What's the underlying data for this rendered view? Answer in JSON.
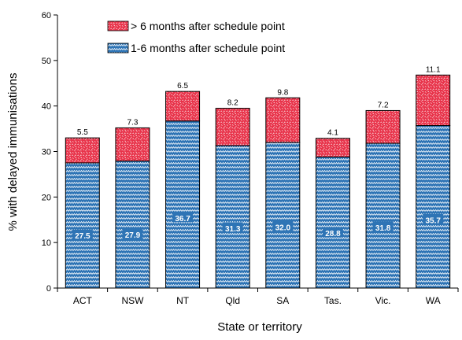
{
  "chart_data": {
    "type": "bar",
    "stacked": true,
    "categories": [
      "ACT",
      "NSW",
      "NT",
      "Qld",
      "SA",
      "Tas.",
      "Vic.",
      "WA"
    ],
    "series": [
      {
        "name": "1-6 months after schedule point",
        "values": [
          27.5,
          27.9,
          36.7,
          31.3,
          32.0,
          28.8,
          31.8,
          35.7
        ],
        "labels": [
          "27.5",
          "27.9",
          "36.7",
          "31.3",
          "32.0",
          "28.8",
          "31.8",
          "35.7"
        ],
        "color": "#2E74B5",
        "pattern": "zigzag"
      },
      {
        "name": "> 6 months after schedule point",
        "values": [
          5.5,
          7.3,
          6.5,
          8.2,
          9.8,
          4.1,
          7.2,
          11.1
        ],
        "labels": [
          "5.5",
          "7.3",
          "6.5",
          "8.2",
          "9.8",
          "4.1",
          "7.2",
          "11.1"
        ],
        "color": "#E8334A",
        "pattern": "speckle"
      }
    ],
    "xlabel": "State or territory",
    "ylabel": "% with delayed immunisations",
    "ylim": [
      0,
      60
    ],
    "yticks": [
      0,
      10,
      20,
      30,
      40,
      50,
      60
    ],
    "legend_position": "top-left",
    "grid": false
  }
}
